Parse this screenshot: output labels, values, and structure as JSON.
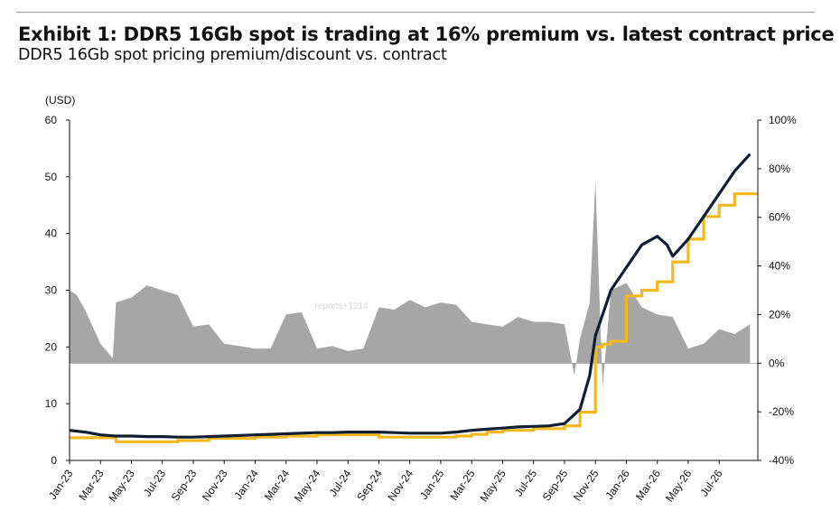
{
  "title": "Exhibit 1: DDR5 16Gb spot is trading at 16% premium vs. latest contract price",
  "subtitle": "DDR5 16Gb spot pricing premium/discount vs. contract",
  "watermark": "reports+1214",
  "colors": {
    "spot": "#0f1e33",
    "contract": "#f2b81f",
    "premium": "#a6a6a6"
  },
  "chart_data": {
    "type": "line",
    "y_left_unit": "(USD)",
    "y_left_range": [
      0,
      60
    ],
    "y_left_ticks": [
      "60",
      "50",
      "40",
      "30",
      "20",
      "10",
      "0"
    ],
    "y_right_range": [
      -40,
      100
    ],
    "y_right_ticks": [
      "100%",
      "80%",
      "60%",
      "40%",
      "20%",
      "0%",
      "-20%",
      "-40%"
    ],
    "x_ticks": [
      "Jan-23",
      "Mar-23",
      "May-23",
      "Jul-23",
      "Sep-23",
      "Nov-23",
      "Jan-24",
      "Mar-24",
      "May-24",
      "Jul-24",
      "Sep-24",
      "Nov-24",
      "Jan-25",
      "Mar-25",
      "May-25",
      "Jul-25",
      "Sep-25",
      "Nov-25",
      "Jan-26",
      "Mar-26",
      "May-26",
      "Jul-26"
    ],
    "x_range_months": [
      "2023-01",
      "2026-09"
    ],
    "series": [
      {
        "id": "spot",
        "axis": "left",
        "points": [
          [
            "2023-01",
            5.3
          ],
          [
            "2023-02",
            5.0
          ],
          [
            "2023-03",
            4.5
          ],
          [
            "2023-04",
            4.3
          ],
          [
            "2023-05",
            4.3
          ],
          [
            "2023-06",
            4.2
          ],
          [
            "2023-07",
            4.2
          ],
          [
            "2023-08",
            4.1
          ],
          [
            "2023-09",
            4.1
          ],
          [
            "2023-10",
            4.2
          ],
          [
            "2023-11",
            4.3
          ],
          [
            "2023-12",
            4.4
          ],
          [
            "2024-01",
            4.5
          ],
          [
            "2024-02",
            4.6
          ],
          [
            "2024-03",
            4.7
          ],
          [
            "2024-04",
            4.8
          ],
          [
            "2024-05",
            4.9
          ],
          [
            "2024-06",
            4.9
          ],
          [
            "2024-07",
            5.0
          ],
          [
            "2024-08",
            5.0
          ],
          [
            "2024-09",
            5.0
          ],
          [
            "2024-10",
            4.9
          ],
          [
            "2024-11",
            4.8
          ],
          [
            "2024-12",
            4.8
          ],
          [
            "2025-01",
            4.8
          ],
          [
            "2025-02",
            5.0
          ],
          [
            "2025-03",
            5.3
          ],
          [
            "2025-04",
            5.5
          ],
          [
            "2025-05",
            5.7
          ],
          [
            "2025-06",
            5.9
          ],
          [
            "2025-07",
            6.0
          ],
          [
            "2025-08",
            6.1
          ],
          [
            "2025-09",
            6.5
          ],
          [
            "2025-10",
            9.0
          ],
          [
            "2025-10-20",
            15
          ],
          [
            "2025-11",
            22
          ],
          [
            "2025-11-20",
            27
          ],
          [
            "2025-12",
            30
          ],
          [
            "2026-01",
            34
          ],
          [
            "2026-02",
            38
          ],
          [
            "2026-03",
            39.5
          ],
          [
            "2026-03-20",
            38
          ],
          [
            "2026-04",
            36
          ],
          [
            "2026-05",
            39
          ],
          [
            "2026-06",
            43
          ],
          [
            "2026-07",
            47
          ],
          [
            "2026-08",
            51
          ],
          [
            "2026-09",
            54
          ]
        ]
      },
      {
        "id": "contract",
        "axis": "left",
        "step": true,
        "points": [
          [
            "2023-01",
            4.0
          ],
          [
            "2023-04",
            3.3
          ],
          [
            "2023-08",
            3.5
          ],
          [
            "2023-10",
            3.9
          ],
          [
            "2024-01",
            4.1
          ],
          [
            "2024-03",
            4.3
          ],
          [
            "2024-05",
            4.5
          ],
          [
            "2024-09",
            4.1
          ],
          [
            "2025-02",
            4.3
          ],
          [
            "2025-03",
            4.6
          ],
          [
            "2025-04",
            5.0
          ],
          [
            "2025-05",
            5.3
          ],
          [
            "2025-07",
            5.6
          ],
          [
            "2025-09",
            6.1
          ],
          [
            "2025-10",
            8.5
          ],
          [
            "2025-11",
            20
          ],
          [
            "2025-11-15",
            20.5
          ],
          [
            "2025-12",
            21
          ],
          [
            "2026-01",
            29
          ],
          [
            "2026-02",
            30
          ],
          [
            "2026-03",
            31.5
          ],
          [
            "2026-04",
            35
          ],
          [
            "2026-05",
            39
          ],
          [
            "2026-06",
            43
          ],
          [
            "2026-07",
            45
          ],
          [
            "2026-08",
            47
          ],
          [
            "2026-09",
            47
          ]
        ]
      },
      {
        "id": "premium",
        "axis": "right",
        "type": "area",
        "points": [
          [
            "2023-01",
            30
          ],
          [
            "2023-01-15",
            28
          ],
          [
            "2023-02",
            22
          ],
          [
            "2023-03",
            8
          ],
          [
            "2023-03-25",
            2
          ],
          [
            "2023-04",
            25
          ],
          [
            "2023-05",
            27
          ],
          [
            "2023-06",
            32
          ],
          [
            "2023-07",
            30
          ],
          [
            "2023-08",
            28
          ],
          [
            "2023-09",
            15
          ],
          [
            "2023-10",
            16
          ],
          [
            "2023-11",
            8
          ],
          [
            "2023-12",
            7
          ],
          [
            "2024-01",
            6
          ],
          [
            "2024-02",
            6
          ],
          [
            "2024-03",
            20
          ],
          [
            "2024-04",
            21
          ],
          [
            "2024-05",
            6
          ],
          [
            "2024-06",
            7
          ],
          [
            "2024-07",
            5
          ],
          [
            "2024-08",
            6
          ],
          [
            "2024-09",
            23
          ],
          [
            "2024-10",
            22
          ],
          [
            "2024-11",
            26
          ],
          [
            "2024-12",
            23
          ],
          [
            "2025-01",
            25
          ],
          [
            "2025-02",
            24
          ],
          [
            "2025-03",
            17
          ],
          [
            "2025-04",
            16
          ],
          [
            "2025-05",
            15
          ],
          [
            "2025-06",
            19
          ],
          [
            "2025-07",
            17
          ],
          [
            "2025-08",
            17
          ],
          [
            "2025-09",
            16
          ],
          [
            "2025-09-20",
            -5
          ],
          [
            "2025-10",
            10
          ],
          [
            "2025-10-20",
            25
          ],
          [
            "2025-11",
            75
          ],
          [
            "2025-11-15",
            -10
          ],
          [
            "2025-12",
            30
          ],
          [
            "2026-01",
            33
          ],
          [
            "2026-02",
            23
          ],
          [
            "2026-03",
            20
          ],
          [
            "2026-04",
            19
          ],
          [
            "2026-05",
            6
          ],
          [
            "2026-06",
            8
          ],
          [
            "2026-07",
            14
          ],
          [
            "2026-08",
            12
          ],
          [
            "2026-09",
            16
          ]
        ]
      }
    ]
  }
}
